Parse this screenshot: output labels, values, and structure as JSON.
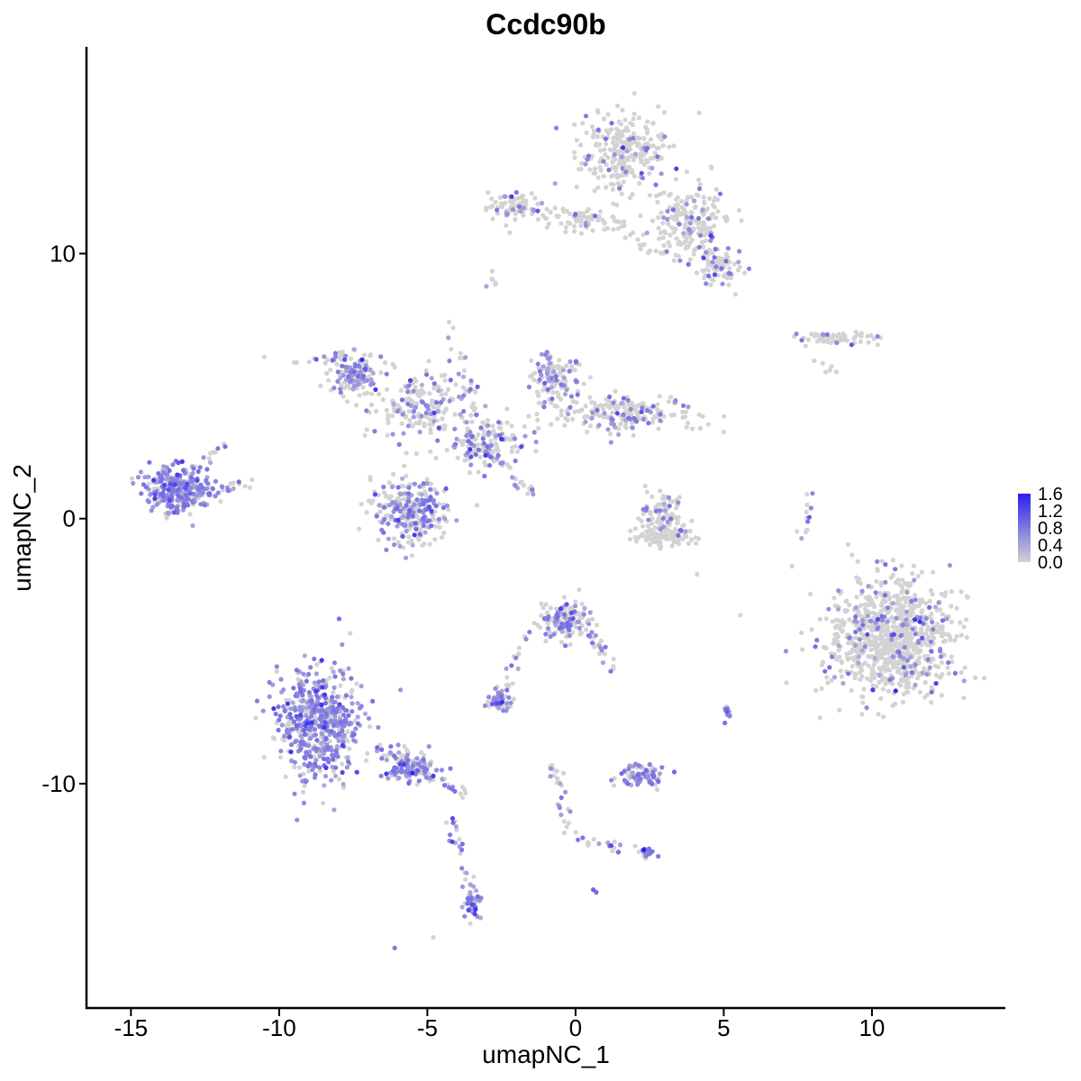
{
  "chart_data": {
    "type": "scatter",
    "title": "Ccdc90b",
    "xlabel": "umapNC_1",
    "ylabel": "umapNC_2",
    "xlim": [
      -16.5,
      14.5
    ],
    "ylim": [
      -18.5,
      17.8
    ],
    "x_ticks": [
      -15,
      -10,
      -5,
      0,
      5,
      10
    ],
    "x_tick_labels": [
      "-15",
      "-10",
      "-5",
      "0",
      "5",
      "10"
    ],
    "y_ticks": [
      -10,
      0,
      10
    ],
    "y_tick_labels": [
      "-10",
      "0",
      "10"
    ],
    "grid": false,
    "legend_placement": "right",
    "color_scale": {
      "low_color": "#d3d3d3",
      "high_color": "#2a1ef0",
      "min": 0.0,
      "max": 1.6,
      "labels": [
        "1.6",
        "1.2",
        "0.8",
        "0.4",
        "0.0"
      ],
      "label_values": [
        1.6,
        1.2,
        0.8,
        0.4,
        0.0
      ]
    },
    "clusters": [
      {
        "x": 1.6,
        "y": 13.8,
        "sx": 0.9,
        "sy": 1.0,
        "n": 260,
        "expr_frac": 0.12
      },
      {
        "x": 3.8,
        "y": 11.2,
        "sx": 0.9,
        "sy": 0.9,
        "n": 200,
        "expr_frac": 0.15
      },
      {
        "x": 4.9,
        "y": 9.5,
        "sx": 0.5,
        "sy": 0.5,
        "n": 80,
        "expr_frac": 0.25
      },
      {
        "x": -2.2,
        "y": 11.8,
        "sx": 0.6,
        "sy": 0.35,
        "n": 70,
        "expr_frac": 0.18
      },
      {
        "x": 0.2,
        "y": 11.2,
        "sx": 1.0,
        "sy": 0.3,
        "n": 60,
        "expr_frac": 0.08
      },
      {
        "x": 8.8,
        "y": 6.8,
        "sx": 0.9,
        "sy": 0.2,
        "n": 60,
        "expr_frac": 0.1
      },
      {
        "x": -7.5,
        "y": 5.4,
        "sx": 0.5,
        "sy": 0.5,
        "n": 120,
        "expr_frac": 0.45
      },
      {
        "x": -5.2,
        "y": 4.2,
        "sx": 1.1,
        "sy": 0.9,
        "n": 180,
        "expr_frac": 0.3
      },
      {
        "x": -0.8,
        "y": 5.3,
        "sx": 0.55,
        "sy": 0.7,
        "n": 130,
        "expr_frac": 0.3
      },
      {
        "x": 1.6,
        "y": 4.0,
        "sx": 1.6,
        "sy": 0.45,
        "n": 200,
        "expr_frac": 0.25
      },
      {
        "x": -3.0,
        "y": 2.8,
        "sx": 0.9,
        "sy": 0.6,
        "n": 140,
        "expr_frac": 0.35
      },
      {
        "x": -5.6,
        "y": 0.3,
        "sx": 0.85,
        "sy": 0.8,
        "n": 280,
        "expr_frac": 0.45
      },
      {
        "x": -13.3,
        "y": 1.1,
        "sx": 0.8,
        "sy": 0.6,
        "n": 300,
        "expr_frac": 0.7
      },
      {
        "x": 3.0,
        "y": 0.0,
        "sx": 0.55,
        "sy": 0.55,
        "n": 120,
        "expr_frac": 0.12
      },
      {
        "x": 2.9,
        "y": -0.7,
        "sx": 0.6,
        "sy": 0.2,
        "n": 60,
        "expr_frac": 0.05
      },
      {
        "x": 10.6,
        "y": -4.5,
        "sx": 1.4,
        "sy": 1.5,
        "n": 900,
        "expr_frac": 0.12
      },
      {
        "x": -0.3,
        "y": -3.8,
        "sx": 0.55,
        "sy": 0.5,
        "n": 150,
        "expr_frac": 0.4
      },
      {
        "x": -8.6,
        "y": -7.8,
        "sx": 0.95,
        "sy": 1.4,
        "n": 520,
        "expr_frac": 0.72
      },
      {
        "x": -5.6,
        "y": -9.4,
        "sx": 0.7,
        "sy": 0.4,
        "n": 100,
        "expr_frac": 0.6
      },
      {
        "x": -2.6,
        "y": -6.9,
        "sx": 0.3,
        "sy": 0.2,
        "n": 45,
        "expr_frac": 0.5
      },
      {
        "x": 2.2,
        "y": -9.7,
        "sx": 0.5,
        "sy": 0.25,
        "n": 80,
        "expr_frac": 0.55
      },
      {
        "x": 2.4,
        "y": -12.6,
        "sx": 0.2,
        "sy": 0.12,
        "n": 20,
        "expr_frac": 0.6
      },
      {
        "x": -3.5,
        "y": -14.6,
        "sx": 0.2,
        "sy": 0.45,
        "n": 40,
        "expr_frac": 0.75
      },
      {
        "x": 5.1,
        "y": -7.3,
        "sx": 0.12,
        "sy": 0.2,
        "n": 14,
        "expr_frac": 0.4
      }
    ],
    "trails": [
      {
        "from": [
          -7.0,
          6.2
        ],
        "to": [
          -9.8,
          6.0
        ],
        "n": 20,
        "expr_frac": 0.4
      },
      {
        "from": [
          -4.3,
          7.4
        ],
        "to": [
          -3.2,
          3.2
        ],
        "n": 25,
        "expr_frac": 0.3
      },
      {
        "from": [
          -3.1,
          2.6
        ],
        "to": [
          -1.4,
          0.8
        ],
        "n": 25,
        "expr_frac": 0.4
      },
      {
        "from": [
          -2.6,
          12.0
        ],
        "to": [
          1.4,
          11.1
        ],
        "n": 30,
        "expr_frac": 0.1
      },
      {
        "from": [
          -7.0,
          -8.4
        ],
        "to": [
          -3.8,
          -10.4
        ],
        "n": 50,
        "expr_frac": 0.55
      },
      {
        "from": [
          -4.3,
          -11.0
        ],
        "to": [
          -3.5,
          -14.2
        ],
        "n": 25,
        "expr_frac": 0.55
      },
      {
        "from": [
          -1.3,
          -3.5
        ],
        "to": [
          -2.6,
          -6.8
        ],
        "n": 25,
        "expr_frac": 0.45
      },
      {
        "from": [
          0.3,
          -4.0
        ],
        "to": [
          1.2,
          -5.6
        ],
        "n": 20,
        "expr_frac": 0.45
      },
      {
        "from": [
          -0.8,
          -9.1
        ],
        "to": [
          -0.2,
          -12.0
        ],
        "n": 25,
        "expr_frac": 0.45
      },
      {
        "from": [
          -0.2,
          -12.0
        ],
        "to": [
          2.4,
          -12.6
        ],
        "n": 20,
        "expr_frac": 0.3
      },
      {
        "from": [
          8.0,
          1.2
        ],
        "to": [
          7.7,
          -0.8
        ],
        "n": 12,
        "expr_frac": 0.3
      },
      {
        "from": [
          -12.0,
          1.0
        ],
        "to": [
          -10.9,
          1.5
        ],
        "n": 10,
        "expr_frac": 0.25
      },
      {
        "from": [
          -12.4,
          2.0
        ],
        "to": [
          -11.9,
          2.8
        ],
        "n": 8,
        "expr_frac": 0.3
      },
      {
        "from": [
          1.5,
          10.8
        ],
        "to": [
          3.6,
          9.6
        ],
        "n": 15,
        "expr_frac": 0.05
      },
      {
        "from": [
          8.2,
          6.1
        ],
        "to": [
          8.7,
          5.4
        ],
        "n": 6,
        "expr_frac": 0.0
      },
      {
        "from": [
          -2.6,
          9.2
        ],
        "to": [
          -2.9,
          8.6
        ],
        "n": 6,
        "expr_frac": 0.1
      }
    ],
    "points": [
      {
        "x": -10.5,
        "y": 6.1,
        "v": 0.0
      },
      {
        "x": -6.1,
        "y": -16.2,
        "v": 0.8
      },
      {
        "x": -4.8,
        "y": -15.8,
        "v": 0.0
      },
      {
        "x": 0.6,
        "y": -14.0,
        "v": 1.0
      },
      {
        "x": 0.7,
        "y": -14.1,
        "v": 0.9
      },
      {
        "x": 4.1,
        "y": -2.1,
        "v": 0.0
      },
      {
        "x": -7.2,
        "y": 6.0,
        "v": 1.5
      },
      {
        "x": -9.6,
        "y": -8.8,
        "v": 1.4
      },
      {
        "x": -5.5,
        "y": -9.6,
        "v": 1.5
      },
      {
        "x": 2.3,
        "y": -12.5,
        "v": 1.6
      },
      {
        "x": 1.6,
        "y": 14.0,
        "v": 1.4
      },
      {
        "x": 3.4,
        "y": 13.2,
        "v": 1.3
      },
      {
        "x": 4.7,
        "y": 9.2,
        "v": 1.2
      },
      {
        "x": 10.8,
        "y": -6.5,
        "v": 1.5
      },
      {
        "x": 10.2,
        "y": -3.8,
        "v": 1.2
      },
      {
        "x": -2.5,
        "y": 3.0,
        "v": 1.4
      },
      {
        "x": -0.5,
        "y": -3.4,
        "v": 1.3
      },
      {
        "x": -13.1,
        "y": 1.3,
        "v": 1.2
      },
      {
        "x": 7.3,
        "y": -1.8,
        "v": 0.0
      },
      {
        "x": 7.1,
        "y": -5.0,
        "v": 0.6
      }
    ]
  }
}
